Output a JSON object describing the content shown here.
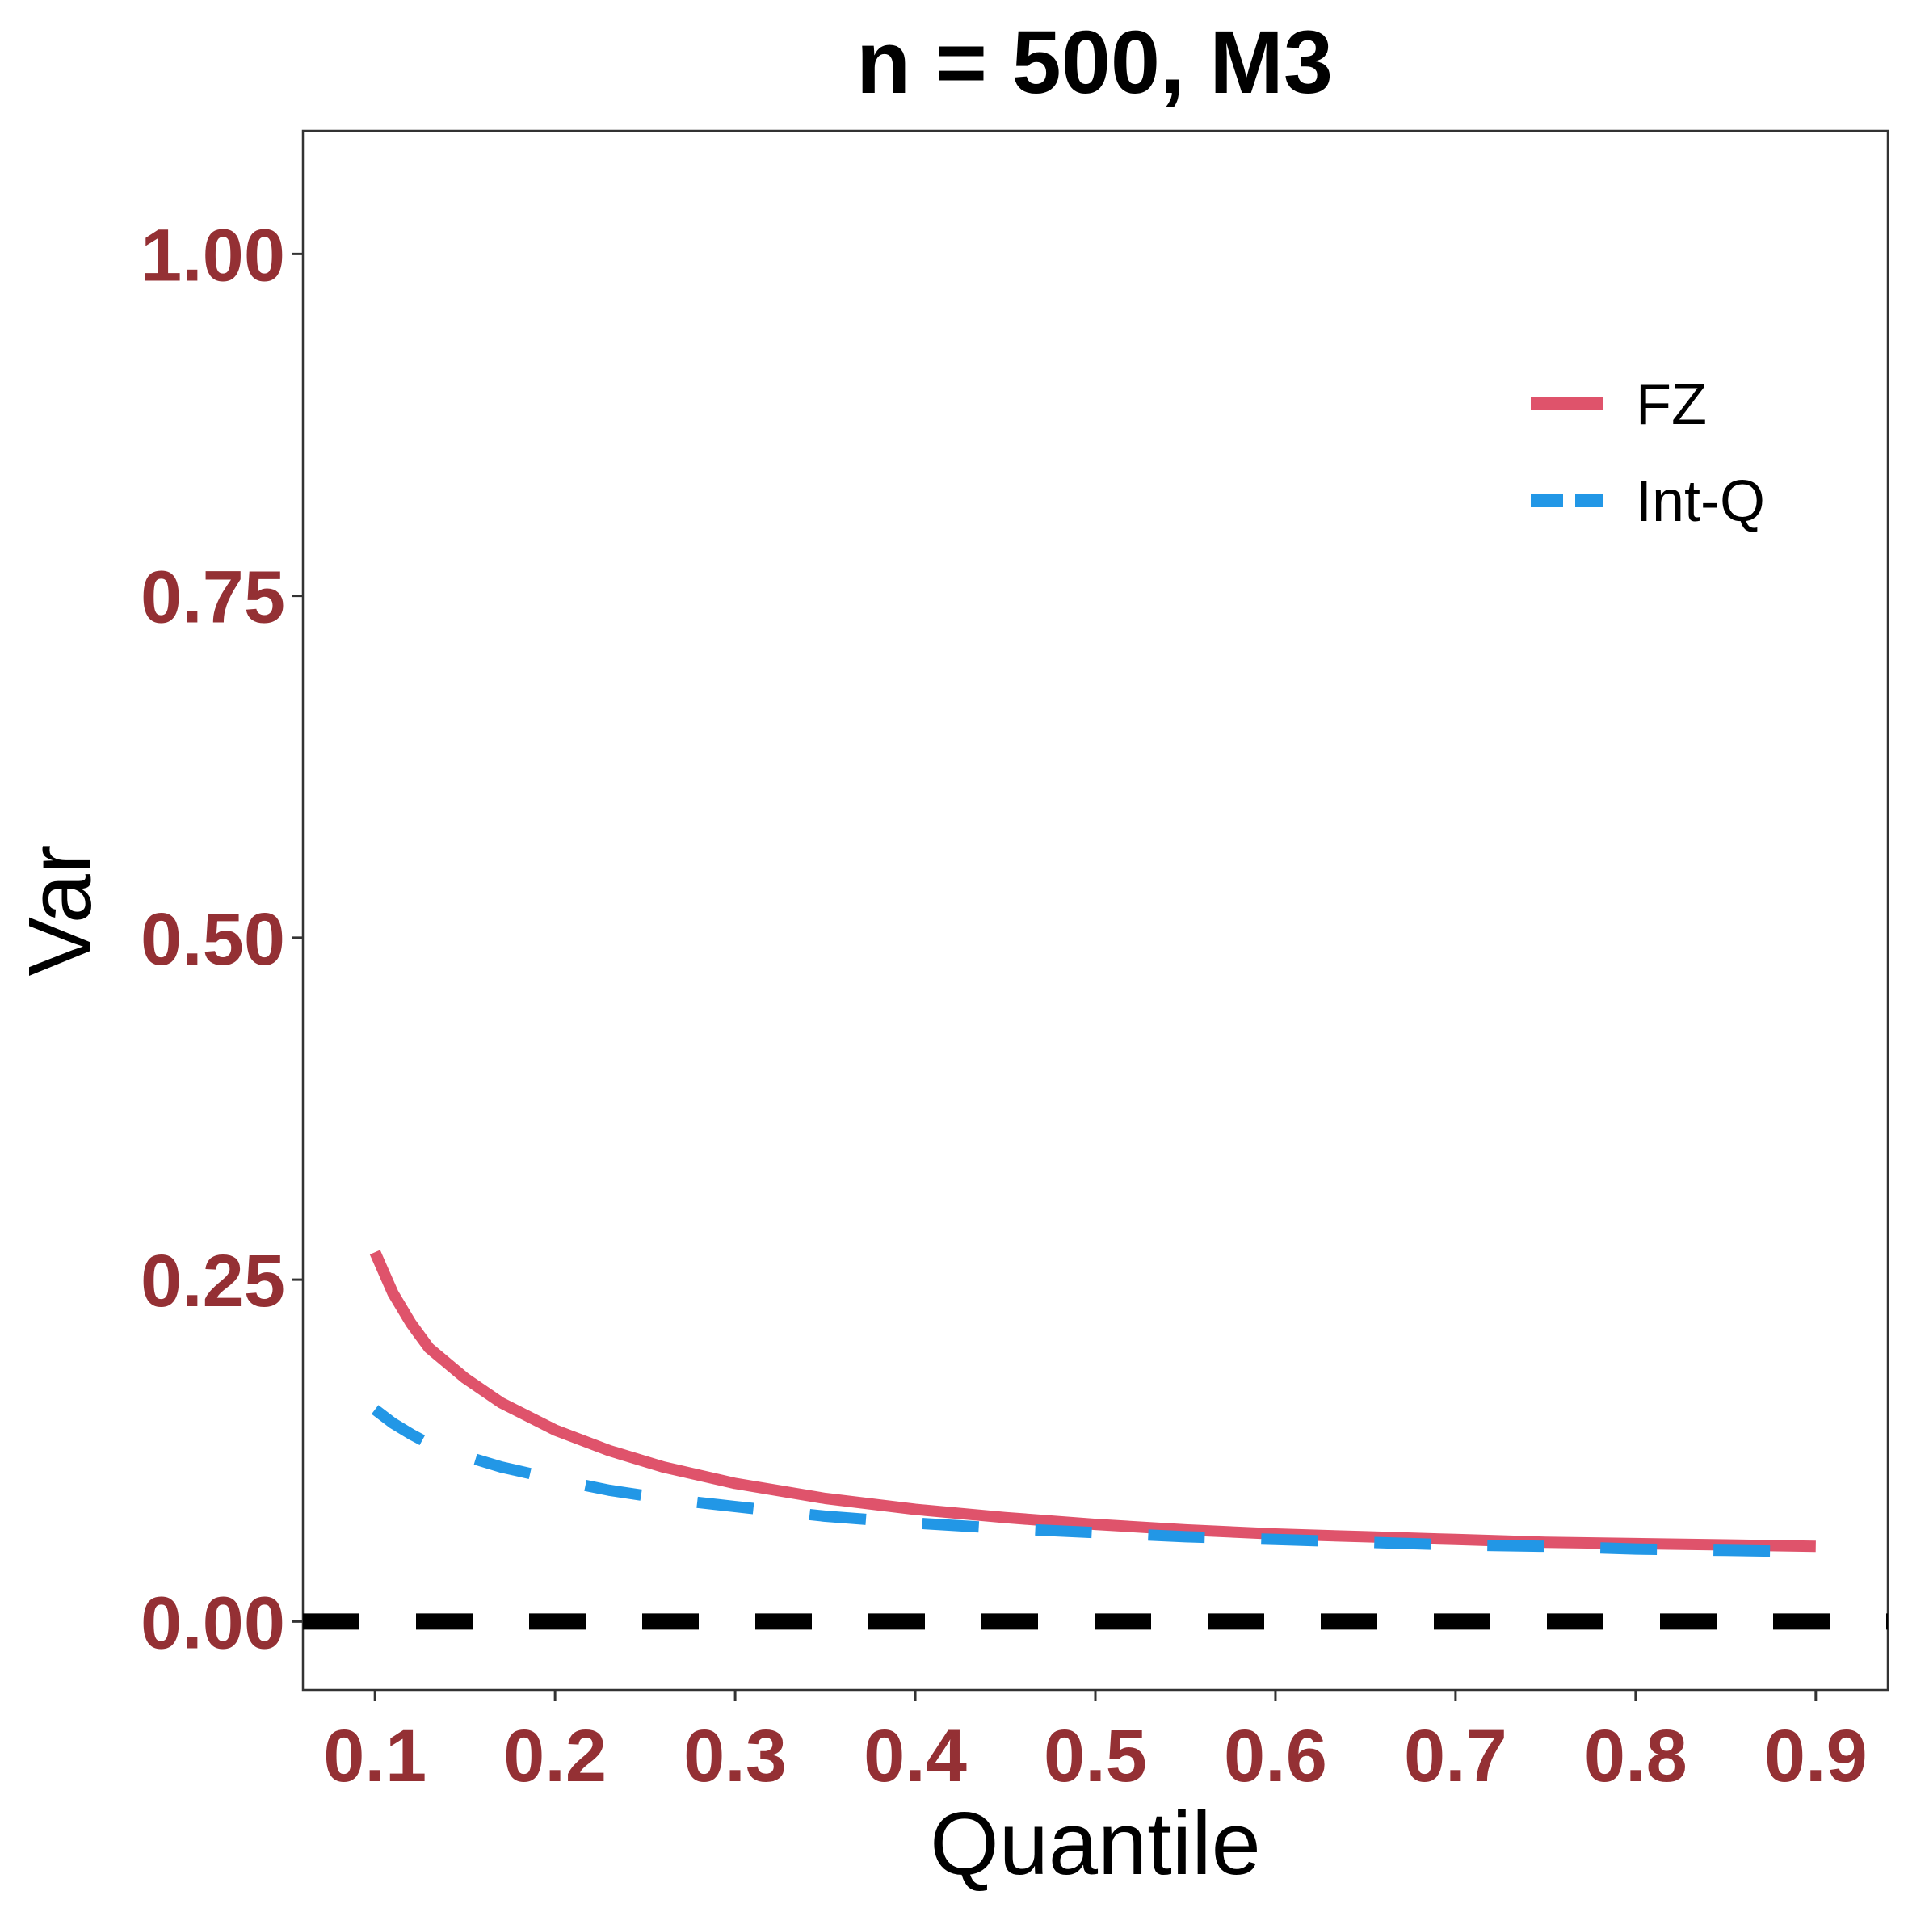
{
  "chart_data": {
    "type": "line",
    "title": "n = 500, M3",
    "xlabel": "Quantile",
    "ylabel": "Var",
    "xlim": [
      0.06,
      0.94
    ],
    "ylim": [
      -0.05,
      1.09
    ],
    "x_ticks": [
      "0.1",
      "0.2",
      "0.3",
      "0.4",
      "0.5",
      "0.6",
      "0.7",
      "0.8",
      "0.9"
    ],
    "y_ticks": [
      "0.00",
      "0.25",
      "0.50",
      "0.75",
      "1.00"
    ],
    "grid": false,
    "legend_position": "top-right",
    "reference_line": {
      "y": 0,
      "style": "dashed",
      "color": "#000000"
    },
    "series": [
      {
        "name": "FZ",
        "style": "solid",
        "color": "#DF536B",
        "x": [
          0.1,
          0.11,
          0.12,
          0.13,
          0.15,
          0.17,
          0.2,
          0.23,
          0.26,
          0.3,
          0.35,
          0.4,
          0.45,
          0.5,
          0.55,
          0.6,
          0.65,
          0.7,
          0.75,
          0.8,
          0.85,
          0.9
        ],
        "values": [
          0.27,
          0.24,
          0.218,
          0.2,
          0.178,
          0.16,
          0.14,
          0.125,
          0.113,
          0.101,
          0.09,
          0.082,
          0.076,
          0.071,
          0.067,
          0.064,
          0.062,
          0.06,
          0.058,
          0.057,
          0.056,
          0.055
        ]
      },
      {
        "name": "Int-Q",
        "style": "dashed",
        "color": "#2297E6",
        "x": [
          0.1,
          0.11,
          0.12,
          0.13,
          0.15,
          0.17,
          0.2,
          0.23,
          0.26,
          0.3,
          0.35,
          0.4,
          0.45,
          0.5,
          0.55,
          0.6,
          0.65,
          0.7,
          0.75,
          0.8,
          0.85,
          0.9
        ],
        "values": [
          0.155,
          0.145,
          0.137,
          0.13,
          0.121,
          0.113,
          0.104,
          0.096,
          0.09,
          0.084,
          0.077,
          0.072,
          0.068,
          0.065,
          0.062,
          0.06,
          0.058,
          0.056,
          0.055,
          0.053,
          0.052,
          0.051
        ]
      }
    ]
  },
  "colors": {
    "tick_label": "#943034",
    "axis_line": "#333333"
  }
}
